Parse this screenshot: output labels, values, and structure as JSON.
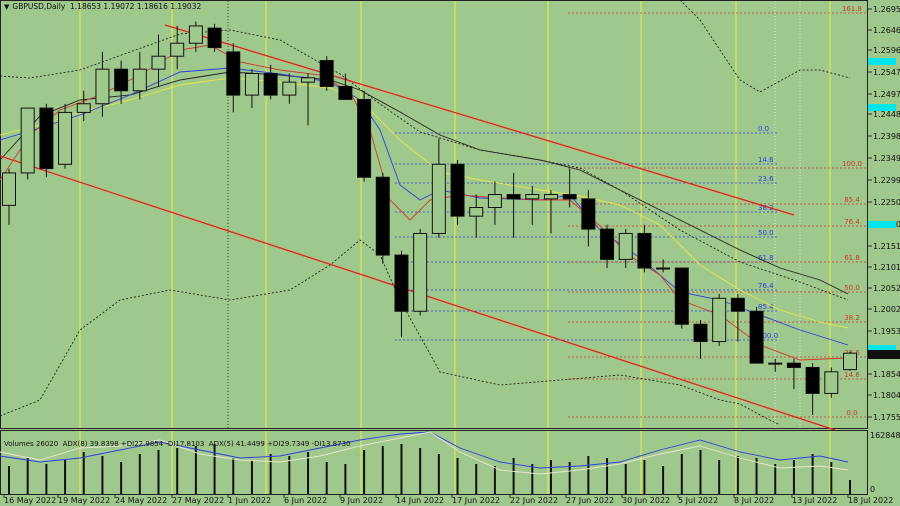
{
  "header": {
    "title": "GBPUSD,Daily  1.18653 1.19072 1.18616 1.19032"
  },
  "indicator": {
    "label": "Volumes 26020  ADX(8) 39.8398 +DI22.9854 -DI17.8103  ADX(5) 41.4499 +DI29.7349 -DI13.8730",
    "top_value": "162848",
    "bottom_value": "0"
  },
  "colors": {
    "background": "#9fc88c",
    "channel": "#e8201c",
    "ma_red": "#d03a2a",
    "ma_blue": "#2f3fe0",
    "ma_yellow": "#e6e64a",
    "ma_black": "#222222",
    "fib_blue": "#2f3fe0",
    "fib_red": "#d03a2a",
    "session_line": "#eeee44",
    "price_tag": "#00e5ee",
    "bull_candle": "#9fc88c",
    "bear_candle": "#000000"
  },
  "price_axis": {
    "labels": [
      "1.26950",
      "1.26460",
      "1.25960",
      "1.25470",
      "1.24970",
      "1.24480",
      "1.23980",
      "1.23490",
      "1.22990",
      "1.22500",
      "1.22000",
      "1.21510",
      "1.21010",
      "1.20520",
      "1.20020",
      "1.19530",
      "1.19032",
      "1.18540",
      "1.18040",
      "1.17550"
    ],
    "current_price": "1.19032"
  },
  "date_axis": {
    "labels": [
      "16 May 2022",
      "19 May 2022",
      "24 May 2022",
      "27 May 2022",
      "1 Jun 2022",
      "6 Jun 2022",
      "9 Jun 2022",
      "14 Jun 2022",
      "17 Jun 2022",
      "22 Jun 2022",
      "27 Jun 2022",
      "30 Jun 2022",
      "5 Jul 2022",
      "8 Jul 2022",
      "13 Jul 2022",
      "18 Jul 2022"
    ]
  },
  "fib_blue_levels": [
    "0.0",
    "14.6",
    "23.6",
    "38.2",
    "50.0",
    "61.8",
    "76.4",
    "85.4",
    "100.0"
  ],
  "fib_red_levels": [
    "161.8",
    "100.0",
    "85.4",
    "76.4",
    "61.8",
    "50.0",
    "38.2",
    "23.6",
    "14.6",
    "0.0"
  ],
  "chart_data": {
    "type": "candlestick",
    "symbol": "GBPUSD",
    "timeframe": "Daily",
    "ohlc_header": {
      "open": 1.18653,
      "high": 1.19072,
      "low": 1.18616,
      "close": 1.19032
    },
    "ylim": [
      1.173,
      1.272
    ],
    "candles": [
      {
        "o": 1.2245,
        "h": 1.233,
        "l": 1.22,
        "c": 1.232
      },
      {
        "o": 1.232,
        "h": 1.2465,
        "l": 1.2305,
        "c": 1.247
      },
      {
        "o": 1.247,
        "h": 1.248,
        "l": 1.231,
        "c": 1.233
      },
      {
        "o": 1.234,
        "h": 1.248,
        "l": 1.233,
        "c": 1.246
      },
      {
        "o": 1.246,
        "h": 1.251,
        "l": 1.244,
        "c": 1.248
      },
      {
        "o": 1.248,
        "h": 1.26,
        "l": 1.245,
        "c": 1.256
      },
      {
        "o": 1.256,
        "h": 1.258,
        "l": 1.248,
        "c": 1.251
      },
      {
        "o": 1.251,
        "h": 1.26,
        "l": 1.249,
        "c": 1.256
      },
      {
        "o": 1.256,
        "h": 1.264,
        "l": 1.252,
        "c": 1.259
      },
      {
        "o": 1.259,
        "h": 1.266,
        "l": 1.256,
        "c": 1.262
      },
      {
        "o": 1.262,
        "h": 1.267,
        "l": 1.26,
        "c": 1.266
      },
      {
        "o": 1.2655,
        "h": 1.2665,
        "l": 1.26,
        "c": 1.261
      },
      {
        "o": 1.26,
        "h": 1.262,
        "l": 1.246,
        "c": 1.25
      },
      {
        "o": 1.25,
        "h": 1.256,
        "l": 1.247,
        "c": 1.255
      },
      {
        "o": 1.255,
        "h": 1.257,
        "l": 1.249,
        "c": 1.25
      },
      {
        "o": 1.25,
        "h": 1.255,
        "l": 1.248,
        "c": 1.253
      },
      {
        "o": 1.253,
        "h": 1.255,
        "l": 1.243,
        "c": 1.254
      },
      {
        "o": 1.258,
        "h": 1.259,
        "l": 1.251,
        "c": 1.252
      },
      {
        "o": 1.252,
        "h": 1.255,
        "l": 1.249,
        "c": 1.249
      },
      {
        "o": 1.249,
        "h": 1.251,
        "l": 1.23,
        "c": 1.231
      },
      {
        "o": 1.231,
        "h": 1.232,
        "l": 1.211,
        "c": 1.213
      },
      {
        "o": 1.213,
        "h": 1.214,
        "l": 1.194,
        "c": 1.2
      },
      {
        "o": 1.2,
        "h": 1.219,
        "l": 1.199,
        "c": 1.218
      },
      {
        "o": 1.218,
        "h": 1.24,
        "l": 1.217,
        "c": 1.234
      },
      {
        "o": 1.234,
        "h": 1.235,
        "l": 1.22,
        "c": 1.222
      },
      {
        "o": 1.222,
        "h": 1.227,
        "l": 1.217,
        "c": 1.224
      },
      {
        "o": 1.224,
        "h": 1.23,
        "l": 1.22,
        "c": 1.227
      },
      {
        "o": 1.227,
        "h": 1.232,
        "l": 1.217,
        "c": 1.226
      },
      {
        "o": 1.226,
        "h": 1.229,
        "l": 1.22,
        "c": 1.227
      },
      {
        "o": 1.226,
        "h": 1.228,
        "l": 1.218,
        "c": 1.227
      },
      {
        "o": 1.227,
        "h": 1.233,
        "l": 1.224,
        "c": 1.226
      },
      {
        "o": 1.226,
        "h": 1.228,
        "l": 1.215,
        "c": 1.219
      },
      {
        "o": 1.219,
        "h": 1.22,
        "l": 1.21,
        "c": 1.212
      },
      {
        "o": 1.212,
        "h": 1.219,
        "l": 1.21,
        "c": 1.218
      },
      {
        "o": 1.218,
        "h": 1.22,
        "l": 1.209,
        "c": 1.21
      },
      {
        "o": 1.21,
        "h": 1.212,
        "l": 1.209,
        "c": 1.21
      },
      {
        "o": 1.21,
        "h": 1.21,
        "l": 1.196,
        "c": 1.197
      },
      {
        "o": 1.197,
        "h": 1.198,
        "l": 1.189,
        "c": 1.193
      },
      {
        "o": 1.193,
        "h": 1.204,
        "l": 1.192,
        "c": 1.203
      },
      {
        "o": 1.203,
        "h": 1.204,
        "l": 1.193,
        "c": 1.2
      },
      {
        "o": 1.2,
        "h": 1.201,
        "l": 1.188,
        "c": 1.188
      },
      {
        "o": 1.188,
        "h": 1.189,
        "l": 1.186,
        "c": 1.188
      },
      {
        "o": 1.188,
        "h": 1.189,
        "l": 1.182,
        "c": 1.187
      },
      {
        "o": 1.187,
        "h": 1.188,
        "l": 1.176,
        "c": 1.181
      },
      {
        "o": 1.181,
        "h": 1.187,
        "l": 1.18,
        "c": 1.186
      },
      {
        "o": 1.1865,
        "h": 1.1907,
        "l": 1.1862,
        "c": 1.1903
      }
    ],
    "volume_ylim": [
      0,
      162848
    ]
  }
}
